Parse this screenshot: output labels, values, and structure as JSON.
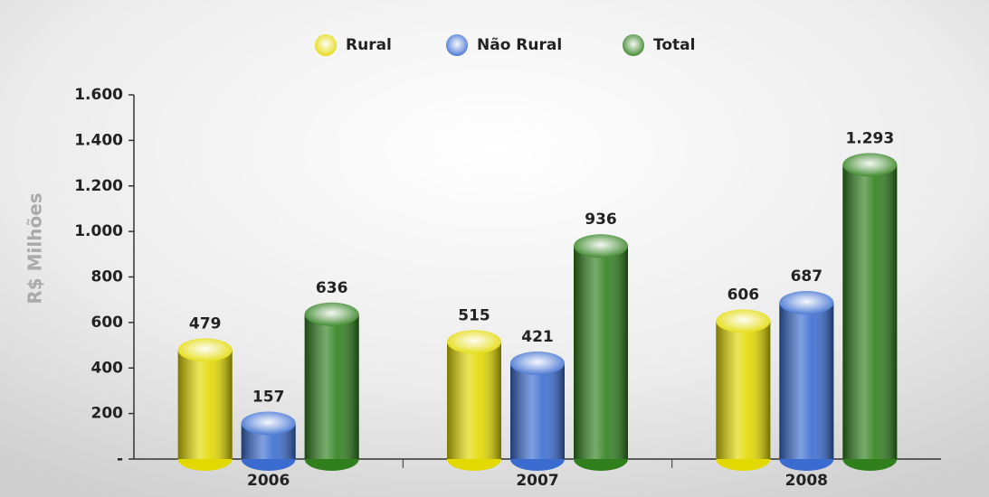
{
  "chart_data": {
    "type": "bar",
    "y_label": "R$ Milhões",
    "categories": [
      "2006",
      "2007",
      "2008"
    ],
    "series": [
      {
        "name": "Rural",
        "color": "#e2d900",
        "values": [
          479,
          515,
          606
        ]
      },
      {
        "name": "Não Rural",
        "color": "#3a6cd0",
        "values": [
          157,
          421,
          687
        ]
      },
      {
        "name": "Total",
        "color": "#2f7f1c",
        "values": [
          636,
          936,
          1293
        ],
        "value_labels": [
          "636",
          "936",
          "1.293"
        ]
      }
    ],
    "ylim": [
      0,
      1600
    ],
    "yticks": [
      {
        "value": 0,
        "label": "-"
      },
      200,
      400,
      600,
      800,
      {
        "value": 1000,
        "label": "1.000"
      },
      {
        "value": 1200,
        "label": "1.200"
      },
      {
        "value": 1400,
        "label": "1.400"
      },
      {
        "value": 1600,
        "label": "1.600"
      }
    ],
    "legend": "top"
  }
}
